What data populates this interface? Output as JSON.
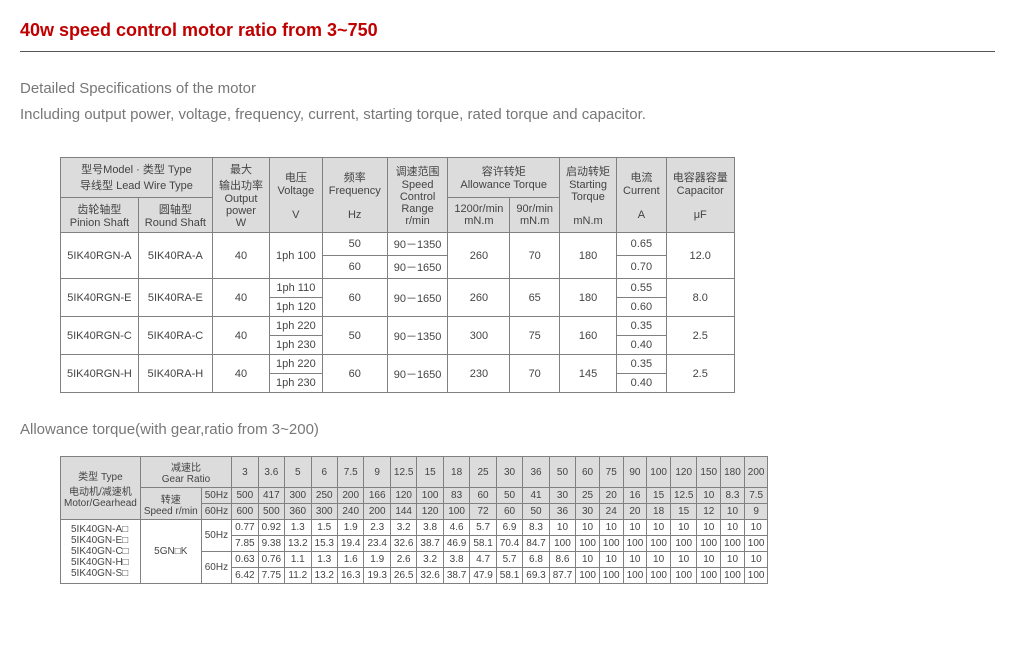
{
  "title": "40w speed control motor ratio from 3~750",
  "intro_line1": "Detailed Specifications of the motor",
  "intro_line2": "Including output power, voltage, frequency, current, starting torque, rated torque and capacitor.",
  "spec_table": {
    "hdr": {
      "model_type_cn_en": "型号Model · 类型 Type",
      "lead_wire_type": "导线型 Lead Wire Type",
      "max_output_cn": "最大",
      "max_output_cn2": "输出功率",
      "output": "Output",
      "power": "power",
      "w": "W",
      "voltage_cn": "电压",
      "voltage_en": "Voltage",
      "v": "V",
      "freq_cn": "频率",
      "freq_en": "Frequency",
      "hz": "Hz",
      "speed_range_cn": "调速范围",
      "speed_en": "Speed",
      "control": "Control",
      "range": "Range",
      "rpm": "r/min",
      "allow_torque_cn": "容许转矩",
      "allow_torque_en": "Allowance Torque",
      "t1200": "1200r/min",
      "t90": "90r/min",
      "mnm": "mN.m",
      "start_torque_cn": "启动转矩",
      "start_torque_en": "Starting",
      "torque": "Torque",
      "current_cn": "电流",
      "current_en": "Current",
      "a": "A",
      "cap_cn": "电容器容量",
      "cap_en": "Capacitor",
      "uf": "μF",
      "pinion_cn": "齿轮轴型",
      "pinion_en": "Pinion Shaft",
      "round_cn": "圆轴型",
      "round_en": "Round Shaft"
    },
    "rows": [
      {
        "pinion": "5IK40RGN-A",
        "round": "5IK40RA-A",
        "w": "40",
        "v1": "1ph 100",
        "v2": "",
        "hz1": "50",
        "hz2": "60",
        "sr1": "90－1350",
        "sr2": "90－1650",
        "t1200": "260",
        "t90": "70",
        "start": "180",
        "cur1": "0.65",
        "cur2": "0.70",
        "cap": "12.0"
      },
      {
        "pinion": "5IK40RGN-E",
        "round": "5IK40RA-E",
        "w": "40",
        "v1": "1ph 110",
        "v2": "1ph 120",
        "hz1": "60",
        "hz2": "",
        "sr1": "90－1650",
        "sr2": "",
        "t1200": "260",
        "t90": "65",
        "start": "180",
        "cur1": "0.55",
        "cur2": "0.60",
        "cap": "8.0"
      },
      {
        "pinion": "5IK40RGN-C",
        "round": "5IK40RA-C",
        "w": "40",
        "v1": "1ph 220",
        "v2": "1ph 230",
        "hz1": "50",
        "hz2": "",
        "sr1": "90－1350",
        "sr2": "",
        "t1200": "300",
        "t90": "75",
        "start": "160",
        "cur1": "0.35",
        "cur2": "0.40",
        "cap": "2.5"
      },
      {
        "pinion": "5IK40RGN-H",
        "round": "5IK40RA-H",
        "w": "40",
        "v1": "1ph 220",
        "v2": "1ph 230",
        "hz1": "60",
        "hz2": "",
        "sr1": "90－1650",
        "sr2": "",
        "t1200": "230",
        "t90": "70",
        "start": "145",
        "cur1": "0.35",
        "cur2": "0.40",
        "cap": "2.5"
      }
    ]
  },
  "subheading": "Allowance torque(with gear,ratio from 3~200)",
  "torque_table": {
    "hdr": {
      "type_cn": "类型 Type",
      "motor_cn": "电动机/减速机",
      "motor_en": "Motor/Gearhead",
      "gear_ratio_cn": "减速比",
      "gear_ratio_en": "Gear Ratio",
      "speed_cn": "转速",
      "speed_en": "Speed r/min",
      "r50": "50Hz",
      "r60": "60Hz"
    },
    "ratios": [
      "3",
      "3.6",
      "5",
      "6",
      "7.5",
      "9",
      "12.5",
      "15",
      "18",
      "25",
      "30",
      "36",
      "50",
      "60",
      "75",
      "90",
      "100",
      "120",
      "150",
      "180",
      "200"
    ],
    "speed50": [
      "500",
      "417",
      "300",
      "250",
      "200",
      "166",
      "120",
      "100",
      "83",
      "60",
      "50",
      "41",
      "30",
      "25",
      "20",
      "16",
      "15",
      "12.5",
      "10",
      "8.3",
      "7.5"
    ],
    "speed60": [
      "600",
      "500",
      "360",
      "300",
      "240",
      "200",
      "144",
      "120",
      "100",
      "72",
      "60",
      "50",
      "36",
      "30",
      "24",
      "20",
      "18",
      "15",
      "12",
      "10",
      "9"
    ],
    "models": [
      "5IK40GN-A□",
      "5IK40GN-E□",
      "5IK40GN-C□",
      "5IK40GN-H□",
      "5IK40GN-S□"
    ],
    "gear_model": "5GN□K",
    "t50a": [
      "0.77",
      "0.92",
      "1.3",
      "1.5",
      "1.9",
      "2.3",
      "3.2",
      "3.8",
      "4.6",
      "5.7",
      "6.9",
      "8.3",
      "10",
      "10",
      "10",
      "10",
      "10",
      "10",
      "10",
      "10",
      "10"
    ],
    "t50b": [
      "7.85",
      "9.38",
      "13.2",
      "15.3",
      "19.4",
      "23.4",
      "32.6",
      "38.7",
      "46.9",
      "58.1",
      "70.4",
      "84.7",
      "100",
      "100",
      "100",
      "100",
      "100",
      "100",
      "100",
      "100",
      "100"
    ],
    "t60a": [
      "0.63",
      "0.76",
      "1.1",
      "1.3",
      "1.6",
      "1.9",
      "2.6",
      "3.2",
      "3.8",
      "4.7",
      "5.7",
      "6.8",
      "8.6",
      "10",
      "10",
      "10",
      "10",
      "10",
      "10",
      "10",
      "10"
    ],
    "t60b": [
      "6.42",
      "7.75",
      "11.2",
      "13.2",
      "16.3",
      "19.3",
      "26.5",
      "32.6",
      "38.7",
      "47.9",
      "58.1",
      "69.3",
      "87.7",
      "100",
      "100",
      "100",
      "100",
      "100",
      "100",
      "100",
      "100"
    ]
  }
}
